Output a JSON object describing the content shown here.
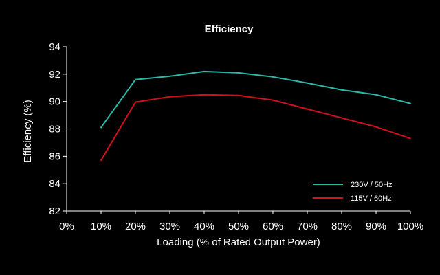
{
  "chart_data": {
    "type": "line",
    "title": "Efficiency",
    "xlabel": "Loading (% of Rated Output Power)",
    "ylabel": "Efficiency (%)",
    "x": [
      10,
      20,
      30,
      40,
      50,
      60,
      70,
      80,
      90,
      100
    ],
    "xticks": [
      "0%",
      "10%",
      "20%",
      "30%",
      "40%",
      "50%",
      "60%",
      "70%",
      "80%",
      "90%",
      "100%"
    ],
    "xlim": [
      0,
      100
    ],
    "ylim": [
      82,
      94
    ],
    "yticks": [
      "82",
      "84",
      "86",
      "88",
      "90",
      "92",
      "94"
    ],
    "grid": false,
    "legend_position": "bottom-right",
    "series": [
      {
        "name": "230V / 50Hz",
        "color": "#2bb8a6",
        "values": [
          88.1,
          91.6,
          91.85,
          92.2,
          92.1,
          91.8,
          91.35,
          90.85,
          90.5,
          89.85
        ]
      },
      {
        "name": "115V / 60Hz",
        "color": "#d1101b",
        "values": [
          85.7,
          89.95,
          90.35,
          90.5,
          90.45,
          90.1,
          89.45,
          88.8,
          88.15,
          87.3
        ]
      }
    ]
  }
}
